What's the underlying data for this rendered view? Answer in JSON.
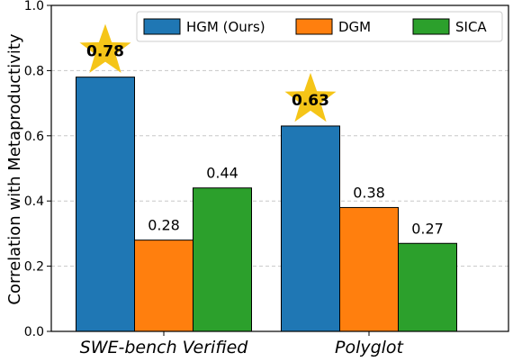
{
  "chart_data": {
    "type": "bar",
    "categories": [
      "SWE-bench Verified",
      "Polyglot"
    ],
    "series": [
      {
        "name": "HGM (Ours)",
        "values": [
          0.78,
          0.63
        ],
        "color": "#1f77b4",
        "labels": [
          "0.78",
          "0.63"
        ],
        "highlight": true
      },
      {
        "name": "DGM",
        "values": [
          0.28,
          0.38
        ],
        "color": "#ff7f0e",
        "labels": [
          "0.28",
          "0.38"
        ],
        "highlight": false
      },
      {
        "name": "SICA",
        "values": [
          0.44,
          0.27
        ],
        "color": "#2ca02c",
        "labels": [
          "0.44",
          "0.27"
        ],
        "highlight": false
      }
    ],
    "ylabel": "Correlation with Metaproductivity",
    "xlabel": "",
    "ylim": [
      0,
      1.0
    ],
    "yticks": [
      "0.0",
      "0.2",
      "0.4",
      "0.6",
      "0.8",
      "1.0"
    ],
    "grid": "horizontal dashed",
    "legend_position": "top",
    "star_color": "#f5c518"
  }
}
